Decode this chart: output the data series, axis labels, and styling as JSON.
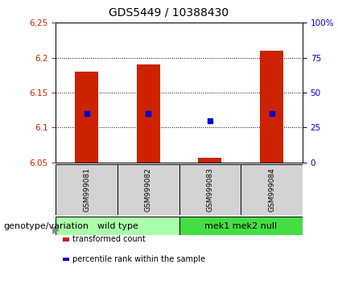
{
  "title": "GDS5449 / 10388430",
  "samples": [
    "GSM999081",
    "GSM999082",
    "GSM999083",
    "GSM999084"
  ],
  "bar_bottom": 6.05,
  "bar_tops": [
    6.18,
    6.19,
    6.057,
    6.21
  ],
  "percentile_values": [
    6.12,
    6.12,
    6.11,
    6.12
  ],
  "ylim_left": [
    6.05,
    6.25
  ],
  "ylim_right": [
    0,
    100
  ],
  "yticks_left": [
    6.05,
    6.1,
    6.15,
    6.2,
    6.25
  ],
  "yticks_right": [
    0,
    25,
    50,
    75,
    100
  ],
  "bar_color": "#CC2200",
  "dot_color": "#0000CC",
  "label_color_left": "#CC2200",
  "label_color_right": "#0000CC",
  "bg_color": "#FFFFFF",
  "sample_box_color": "#D3D3D3",
  "group1_color": "#AAFFAA",
  "group2_color": "#44DD44",
  "legend_items": [
    {
      "color": "#CC2200",
      "label": "transformed count"
    },
    {
      "color": "#0000CC",
      "label": "percentile rank within the sample"
    }
  ],
  "title_fontsize": 10,
  "tick_fontsize": 7.5,
  "sample_fontsize": 6.5,
  "group_fontsize": 8,
  "legend_fontsize": 7,
  "genotype_fontsize": 8
}
